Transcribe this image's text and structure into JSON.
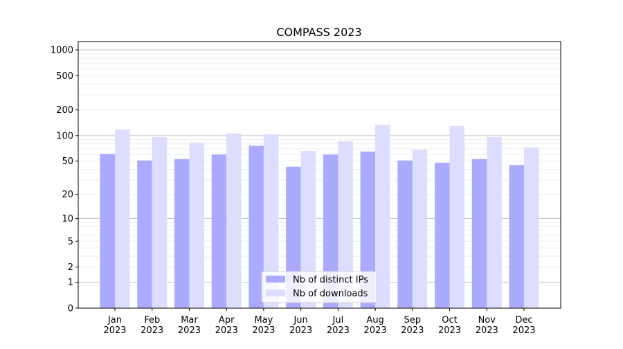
{
  "chart_data": {
    "type": "bar",
    "title": "COMPASS 2023",
    "xlabel": "",
    "ylabel": "",
    "yscale": "log(1+y) (symlog-like)",
    "ylim": [
      0,
      1250
    ],
    "yticks": [
      0,
      1,
      2,
      5,
      10,
      20,
      50,
      100,
      200,
      500,
      1000
    ],
    "grid": true,
    "legend_position": "bottom-center",
    "categories": [
      "Jan\n2023",
      "Feb\n2023",
      "Mar\n2023",
      "Apr\n2023",
      "May\n2023",
      "Jun\n2023",
      "Jul\n2023",
      "Aug\n2023",
      "Sep\n2023",
      "Oct\n2023",
      "Nov\n2023",
      "Dec\n2023"
    ],
    "series": [
      {
        "name": "Nb of distinct IPs",
        "color": "#aaaaff",
        "values": [
          61,
          51,
          53,
          60,
          76,
          43,
          60,
          65,
          51,
          48,
          53,
          45
        ]
      },
      {
        "name": "Nb of downloads",
        "color": "#ddddff",
        "values": [
          118,
          96,
          83,
          106,
          104,
          66,
          86,
          133,
          68,
          130,
          96,
          73
        ]
      }
    ]
  }
}
